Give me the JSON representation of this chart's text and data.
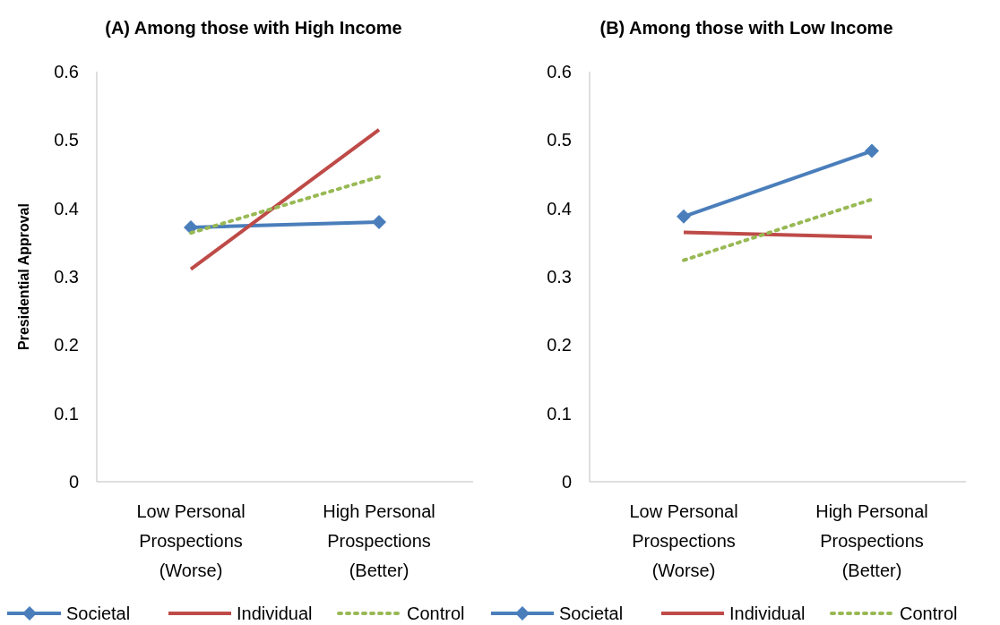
{
  "chart_data": [
    {
      "type": "line",
      "title": "(A) Among those with High Income",
      "ylabel": "Presidential Approval",
      "categories": [
        "Low Personal Prospections (Worse)",
        "High Personal Prospections (Better)"
      ],
      "ylim": [
        0,
        0.6
      ],
      "yticks": [
        {
          "value": 0,
          "label": "0"
        },
        0.1,
        0.2,
        0.3,
        0.4,
        0.5,
        0.6
      ],
      "legend": "bottom",
      "grid": false,
      "series": [
        {
          "name": "Societal",
          "color": "#4a7ebb",
          "values": [
            0.372,
            0.38
          ],
          "marker": "diamond",
          "line_style": "solid"
        },
        {
          "name": "Individual",
          "color": "#be4b48",
          "values": [
            0.311,
            0.515
          ],
          "marker": "none",
          "line_style": "solid"
        },
        {
          "name": "Control",
          "color": "#98b954",
          "values": [
            0.364,
            0.446
          ],
          "marker": "none",
          "line_style": "dotted"
        }
      ]
    },
    {
      "type": "line",
      "title": "(B) Among those with Low Income",
      "categories": [
        "Low Personal Prospections (Worse)",
        "High Personal Prospections (Better)"
      ],
      "ylim": [
        0,
        0.6
      ],
      "yticks": [
        {
          "value": 0,
          "label": "0"
        },
        0.1,
        0.2,
        0.3,
        0.4,
        0.5,
        0.6
      ],
      "legend": "bottom",
      "grid": false,
      "series": [
        {
          "name": "Societal",
          "color": "#4a7ebb",
          "values": [
            0.388,
            0.484
          ],
          "marker": "diamond",
          "line_style": "solid"
        },
        {
          "name": "Individual",
          "color": "#be4b48",
          "values": [
            0.365,
            0.358
          ],
          "marker": "none",
          "line_style": "solid"
        },
        {
          "name": "Control",
          "color": "#98b954",
          "values": [
            0.324,
            0.413
          ],
          "marker": "none",
          "line_style": "dotted"
        }
      ]
    }
  ]
}
